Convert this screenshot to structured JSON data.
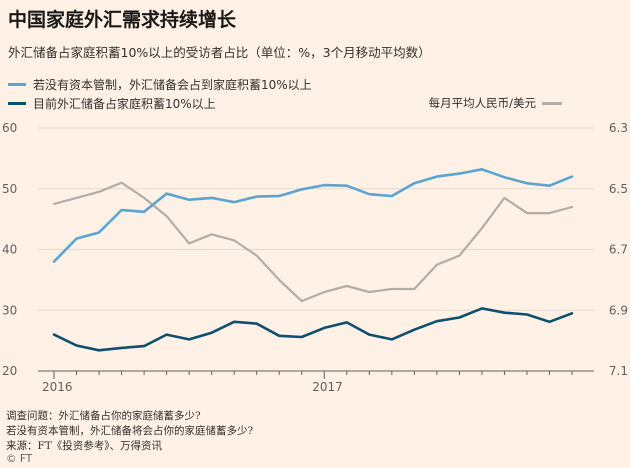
{
  "header": {
    "title": "中国家庭外汇需求持续增长",
    "subtitle": "外汇储备占家庭积蓄10%以上的受访者占比（单位：%，3个月移动平均数）"
  },
  "chart_data": {
    "type": "line",
    "x_labels": [
      "2016",
      "2017"
    ],
    "left_axis": {
      "ticks": [
        60,
        50,
        40,
        30,
        20
      ],
      "range": [
        20,
        60
      ]
    },
    "right_axis": {
      "label": "每月平均人民币/美元",
      "ticks": [
        "6.3",
        "6.5",
        "6.7",
        "6.9",
        "7.1"
      ],
      "range": [
        6.3,
        7.1
      ],
      "inverted": true
    },
    "series": [
      {
        "name": "若没有资本管制，外汇储备会占到家庭积蓄10%以上",
        "axis": "left",
        "color": "#5ba3d0",
        "values": [
          38,
          41.8,
          42.8,
          46.5,
          46.2,
          49.2,
          48.2,
          48.5,
          47.8,
          48.7,
          48.8,
          49.9,
          50.6,
          50.5,
          49.1,
          48.8,
          50.9,
          52,
          52.5,
          53.2,
          51.9,
          50.9,
          50.5,
          52
        ]
      },
      {
        "name": "目前外汇储备占家庭积蓄10%以上",
        "axis": "left",
        "color": "#0d4f6e",
        "values": [
          26,
          24.2,
          23.4,
          23.8,
          24.1,
          26,
          25.2,
          26.3,
          28.1,
          27.8,
          25.8,
          25.6,
          27.1,
          28,
          26,
          25.2,
          26.8,
          28.2,
          28.8,
          30.3,
          29.6,
          29.3,
          28.1,
          29.5
        ]
      },
      {
        "name": "每月平均人民币/美元",
        "axis": "right",
        "color": "#b3aca7",
        "values": [
          6.55,
          6.53,
          6.51,
          6.48,
          6.53,
          6.59,
          6.68,
          6.65,
          6.67,
          6.72,
          6.8,
          6.87,
          6.84,
          6.82,
          6.84,
          6.83,
          6.83,
          6.75,
          6.72,
          6.63,
          6.53,
          6.58,
          6.58,
          6.56
        ]
      }
    ],
    "grid": true
  },
  "footer": {
    "q1": "调查问题：外汇储备占你的家庭储蓄多少?",
    "q2": "若没有资本管制，外汇储备将会占你的家庭储蓄多少?",
    "source": "来源：FT《投资参考》、万得资讯",
    "credit": "© FT"
  }
}
